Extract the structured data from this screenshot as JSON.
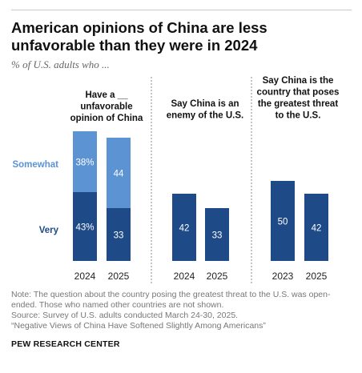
{
  "header": {
    "title": "American opinions of China are less unfavorable than they were in 2024",
    "subtitle": "% of U.S. adults who ..."
  },
  "colors": {
    "very": "#1e4b87",
    "somewhat": "#5b93d3",
    "text_light": "#ffffff",
    "separator": "#888888"
  },
  "chart_data": {
    "type": "bar",
    "stacked": true,
    "row_labels": {
      "somewhat": "Somewhat",
      "very": "Very"
    },
    "panels": [
      {
        "title_lines": [
          "Have a __",
          "unfavorable",
          "opinion of China"
        ],
        "categories": [
          "2024",
          "2025"
        ],
        "series": [
          {
            "name": "Very",
            "values": [
              43,
              33
            ],
            "labels": [
              "43%",
              "33"
            ]
          },
          {
            "name": "Somewhat",
            "values": [
              38,
              44
            ],
            "labels": [
              "38%",
              "44"
            ]
          }
        ]
      },
      {
        "title_lines": [
          "Say China is an",
          "enemy of the U.S."
        ],
        "categories": [
          "2024",
          "2025"
        ],
        "series": [
          {
            "name": "Very",
            "values": [
              42,
              33
            ],
            "labels": [
              "42",
              "33"
            ]
          }
        ]
      },
      {
        "title_lines": [
          "Say China is the",
          "country that poses",
          "the greatest threat",
          "to the U.S."
        ],
        "categories": [
          "2023",
          "2025"
        ],
        "series": [
          {
            "name": "Very",
            "values": [
              50,
              42
            ],
            "labels": [
              "50",
              "42"
            ]
          }
        ]
      }
    ]
  },
  "footer": {
    "note_lines": [
      "Note: The question about the country posing the greatest threat to the U.S. was open-",
      "ended. Those who named other countries are not shown.",
      "Source: Survey of U.S. adults conducted March 24-30, 2025.",
      "“Negative Views of China Have Softened Slightly Among Americans”"
    ],
    "brand": "PEW RESEARCH CENTER"
  }
}
